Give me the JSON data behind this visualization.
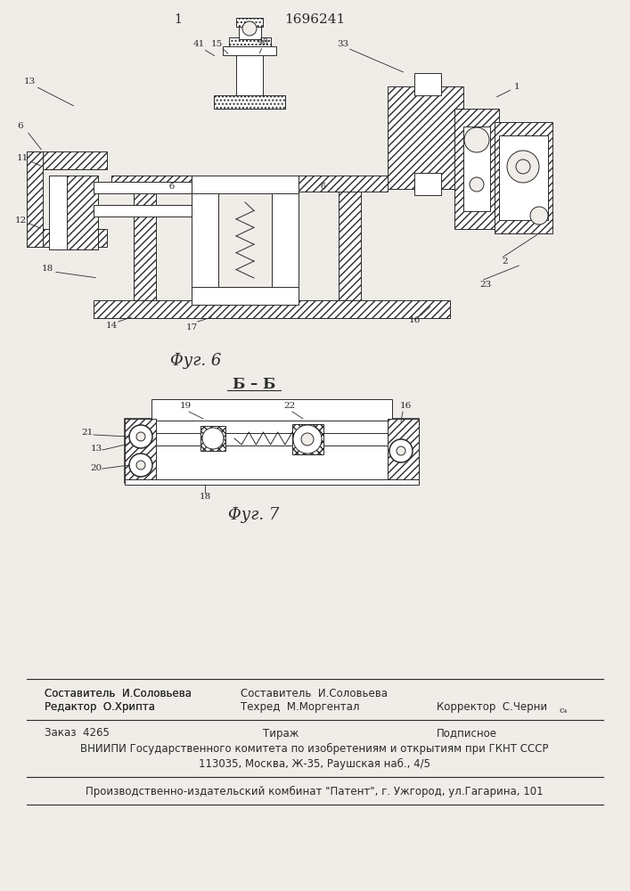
{
  "page_number": "1",
  "patent_number": "1696241",
  "fig6_caption": "Φуг. 6",
  "fig7_caption": "Φуг. 7",
  "section_label": "Б – Б",
  "editor_label": "Редактор  О.Хрипта",
  "composer_label": "Составитель  И.Соловьева",
  "techred_label": "Техред  М.Моргентал",
  "corrector_label": "Корректор  С.Черни",
  "order_label": "Заказ  4265",
  "tirazh_label": "Тираж",
  "podpisnoe_label": "Подписное",
  "vniipii_line1": "ВНИИПИ Государственного комитета по изобретениям и открытиям при ГКНТ СССР",
  "vniipii_line2": "113035, Москва, Ж-35, Раушская наб., 4/5",
  "factory_line": "Производственно-издательский комбинат \"Патент\", г. Ужгород, ул.Гагарина, 101",
  "bg_color": "#f0ede8",
  "fig_color": "#2a2a2a"
}
